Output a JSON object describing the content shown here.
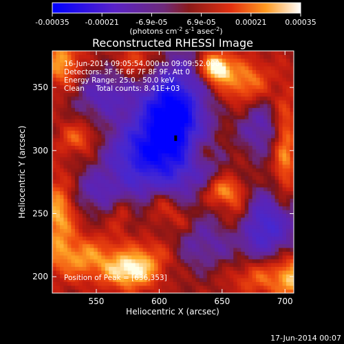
{
  "chart_data": {
    "type": "heatmap",
    "title": "Reconstructed RHESSI Image",
    "xlabel": "Heliocentric X (arcsec)",
    "ylabel": "Heliocentric Y (arcsec)",
    "xlim": [
      515,
      707
    ],
    "ylim": [
      187,
      379
    ],
    "xticks": [
      550,
      600,
      650,
      700
    ],
    "yticks": [
      200,
      250,
      300,
      350
    ],
    "colorbar": {
      "ticks": [
        "-0.00035",
        "-0.00021",
        "-6.9e-05",
        "6.9e-05",
        "0.00021",
        "0.00035"
      ],
      "unit_main": "(photons cm",
      "unit_sup1": "-2",
      "unit_mid": " s",
      "unit_sup2": "-1",
      "unit_end": " asec",
      "unit_sup3": "-2",
      "unit_close": ")",
      "range": [
        -0.00035,
        0.00035
      ]
    },
    "annotations": {
      "line1": "16-Jun-2014 09:05:54.000 to 09:09:52.000",
      "line2": "Detectors: 3F 5F 6F 7F 8F 9F, Att 0",
      "line3": "Energy Range: 25.0 - 50.0 keV",
      "line4": "Clean     Total counts: 8.41E+03",
      "peak": "Position of Peak = [636,353]"
    },
    "peak_position": [
      636,
      353
    ],
    "grid": false
  },
  "footer": {
    "date": "17-Jun-2014 00:07"
  }
}
